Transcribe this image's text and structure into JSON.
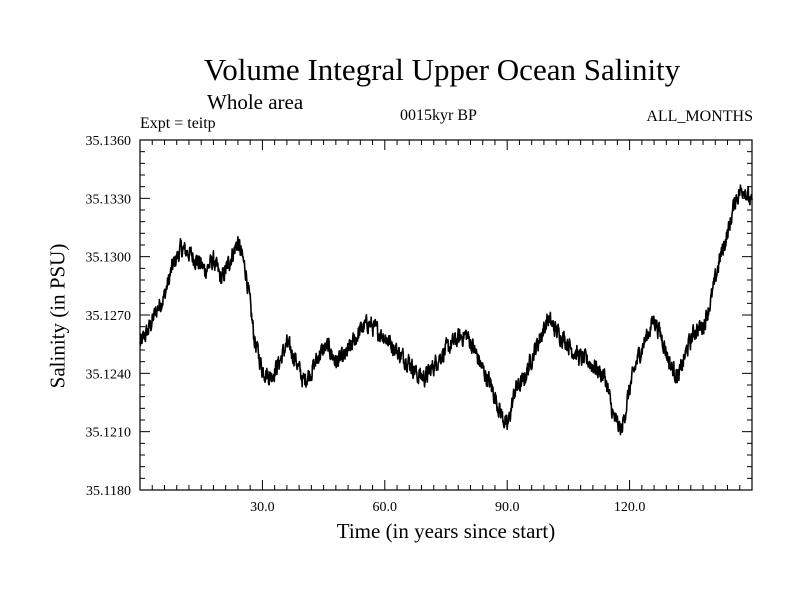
{
  "chart_data": {
    "type": "line",
    "title": "Volume Integral Upper Ocean Salinity",
    "subtitle": "Whole area",
    "experiment_label": "Expt = teitp",
    "period_label": "0015kyr BP",
    "months_label": "ALL_MONTHS",
    "xlabel": "Time (in years since start)",
    "ylabel": "Salinity (in PSU)",
    "xlim": [
      0,
      150
    ],
    "ylim": [
      35.118,
      35.136
    ],
    "x_ticks": [
      30,
      60,
      90,
      120
    ],
    "x_tick_labels": [
      "30.0",
      "60.0",
      "90.0",
      "120.0"
    ],
    "y_ticks": [
      35.118,
      35.121,
      35.124,
      35.127,
      35.13,
      35.133,
      35.136
    ],
    "y_tick_labels": [
      "35.1180",
      "35.1210",
      "35.1240",
      "35.1270",
      "35.1300",
      "35.1330",
      "35.1360"
    ],
    "series": [
      {
        "name": "Salinity",
        "color": "#000000",
        "noise_amplitude": 0.0004,
        "x": [
          0,
          2,
          4,
          6,
          8,
          10,
          12,
          14,
          16,
          18,
          20,
          22,
          24,
          26,
          28,
          30,
          32,
          34,
          36,
          38,
          40,
          42,
          44,
          46,
          48,
          50,
          52,
          54,
          56,
          58,
          60,
          62,
          64,
          66,
          68,
          70,
          72,
          74,
          76,
          78,
          80,
          82,
          84,
          86,
          88,
          90,
          92,
          94,
          96,
          98,
          100,
          102,
          104,
          106,
          108,
          110,
          112,
          114,
          116,
          118,
          120,
          122,
          124,
          126,
          128,
          130,
          132,
          134,
          136,
          138,
          140,
          142,
          144,
          146,
          148,
          150
        ],
        "values": [
          35.1255,
          35.1262,
          35.1272,
          35.128,
          35.1295,
          35.1304,
          35.1302,
          35.1298,
          35.1293,
          35.1298,
          35.1288,
          35.1298,
          35.1308,
          35.1292,
          35.1258,
          35.1242,
          35.1238,
          35.1245,
          35.1255,
          35.1248,
          35.1236,
          35.1241,
          35.125,
          35.1254,
          35.1246,
          35.1248,
          35.1255,
          35.1262,
          35.1266,
          35.1262,
          35.1259,
          35.1254,
          35.1249,
          35.1246,
          35.1239,
          35.1238,
          35.1244,
          35.125,
          35.1254,
          35.1258,
          35.126,
          35.1252,
          35.1242,
          35.1234,
          35.1222,
          35.1212,
          35.1232,
          35.1236,
          35.1248,
          35.1258,
          35.1268,
          35.1262,
          35.1258,
          35.1252,
          35.1248,
          35.1246,
          35.1242,
          35.1238,
          35.1218,
          35.121,
          35.1232,
          35.1248,
          35.1258,
          35.1268,
          35.1258,
          35.1244,
          35.1238,
          35.1252,
          35.1262,
          35.1264,
          35.1278,
          35.1298,
          35.1312,
          35.133,
          35.1336,
          35.1326
        ]
      }
    ]
  }
}
